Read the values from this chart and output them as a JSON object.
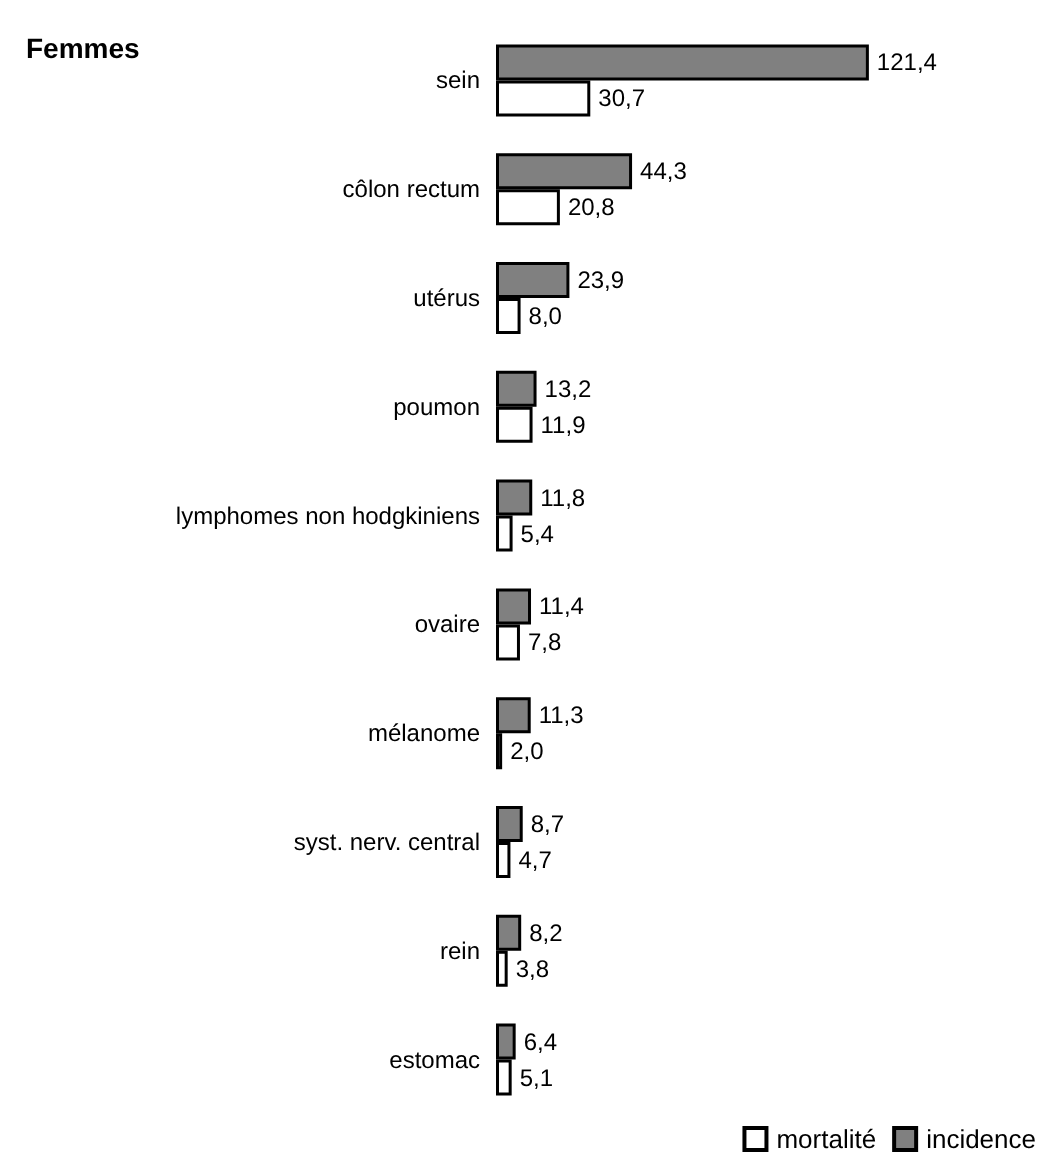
{
  "chart_data": {
    "type": "bar",
    "title": "Femmes",
    "orientation": "horizontal",
    "categories": [
      "sein",
      "côlon rectum",
      "utérus",
      "poumon",
      "lymphomes non hodgkiniens",
      "ovaire",
      "mélanome",
      "syst. nerv. central",
      "rein",
      "estomac"
    ],
    "series": [
      {
        "name": "incidence",
        "color": "#808080",
        "values": [
          121.4,
          44.3,
          23.9,
          13.2,
          11.8,
          11.4,
          11.3,
          8.7,
          8.2,
          6.4
        ],
        "value_labels": [
          "121,4",
          "44,3",
          "23,9",
          "13,2",
          "11,8",
          "11,4",
          "11,3",
          "8,7",
          "8,2",
          "6,4"
        ]
      },
      {
        "name": "mortalité",
        "color": "#ffffff",
        "values": [
          30.7,
          20.8,
          8.0,
          11.9,
          5.4,
          7.8,
          2.0,
          4.7,
          3.8,
          5.1
        ],
        "value_labels": [
          "30,7",
          "20,8",
          "8,0",
          "11,9",
          "5,4",
          "7,8",
          "2,0",
          "4,7",
          "3,8",
          "5,1"
        ]
      }
    ],
    "legend": "bottom right"
  }
}
